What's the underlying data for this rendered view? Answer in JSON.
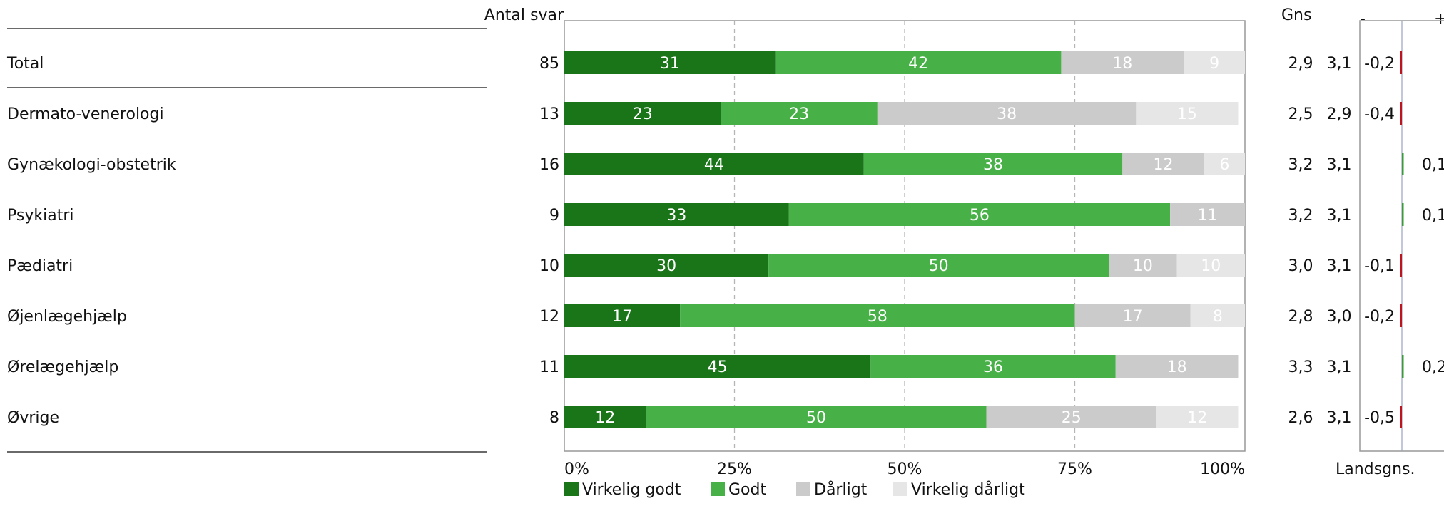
{
  "chart_data": {
    "type": "bar",
    "stacked": true,
    "orientation": "horizontal",
    "count_header": "Antal svar",
    "mean_header": "Gns",
    "diff_header": {
      "minus": "-",
      "plus": "+"
    },
    "diff_footer": "Landsgns.",
    "x_ticks": [
      "0%",
      "25%",
      "50%",
      "75%",
      "100%"
    ],
    "xlim": [
      0,
      100
    ],
    "grid": "vertical-dashed",
    "legend_position": "bottom-left",
    "series": [
      {
        "name": "Virkelig godt",
        "color": "#1a7418",
        "label_color": "#ffffff"
      },
      {
        "name": "Godt",
        "color": "#47b147",
        "label_color": "#ffffff"
      },
      {
        "name": "Dårligt",
        "color": "#cbcbcb",
        "label_color": "#ffffff"
      },
      {
        "name": "Virkelig dårligt",
        "color": "#e6e6e6",
        "label_color": "#ffffff"
      }
    ],
    "rows": [
      {
        "category": "Total",
        "count": "85",
        "values": [
          31,
          42,
          18,
          9
        ],
        "mean": "2,9",
        "national_mean": "3,1",
        "diff": -0.2,
        "diff_label": "-0,2"
      },
      {
        "category": "Dermato-venerologi",
        "count": "13",
        "values": [
          23,
          23,
          38,
          15
        ],
        "mean": "2,5",
        "national_mean": "2,9",
        "diff": -0.4,
        "diff_label": "-0,4"
      },
      {
        "category": "Gynækologi-obstetrik",
        "count": "16",
        "values": [
          44,
          38,
          12,
          6
        ],
        "mean": "3,2",
        "national_mean": "3,1",
        "diff": 0.1,
        "diff_label": "0,1"
      },
      {
        "category": "Psykiatri",
        "count": "9",
        "values": [
          33,
          56,
          11,
          0
        ],
        "mean": "3,2",
        "national_mean": "3,1",
        "diff": 0.1,
        "diff_label": "0,1"
      },
      {
        "category": "Pædiatri",
        "count": "10",
        "values": [
          30,
          50,
          10,
          10
        ],
        "mean": "3,0",
        "national_mean": "3,1",
        "diff": -0.1,
        "diff_label": "-0,1"
      },
      {
        "category": "Øjenlægehjælp",
        "count": "12",
        "values": [
          17,
          58,
          17,
          8
        ],
        "mean": "2,8",
        "national_mean": "3,0",
        "diff": -0.2,
        "diff_label": "-0,2"
      },
      {
        "category": "Ørelægehjælp",
        "count": "11",
        "values": [
          45,
          36,
          18,
          0
        ],
        "mean": "3,3",
        "national_mean": "3,1",
        "diff": 0.2,
        "diff_label": "0,2"
      },
      {
        "category": "Øvrige",
        "count": "8",
        "values": [
          12,
          50,
          25,
          12
        ],
        "mean": "2,6",
        "national_mean": "3,1",
        "diff": -0.5,
        "diff_label": "-0,5"
      }
    ],
    "diff_colors": {
      "negative": "#c0141c",
      "positive": "#3a9a3a",
      "baseline": "#9aa3c0"
    }
  }
}
